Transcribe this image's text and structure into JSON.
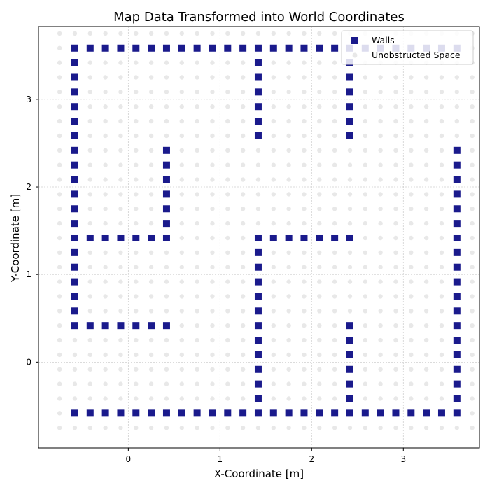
{
  "chart_data": {
    "type": "scatter",
    "title": "Map Data Transformed into World Coordinates",
    "xlabel": "X-Coordinate [m]",
    "ylabel": "Y-Coordinate [m]",
    "xlim": [
      -0.98,
      3.83
    ],
    "ylim": [
      -0.98,
      3.83
    ],
    "xticks": [
      0,
      1,
      2,
      3
    ],
    "yticks": [
      0,
      1,
      2,
      3
    ],
    "grid": true,
    "legend_placement": "top-right",
    "grid_spacing": 0.1667,
    "origin": [
      -0.75,
      -0.75
    ],
    "grid_columns": 28,
    "grid_rows": 28,
    "series": [
      {
        "name": "Walls",
        "marker": "square",
        "color": "#1a1a8c",
        "cells": [
          [
            1,
            1
          ],
          [
            2,
            1
          ],
          [
            3,
            1
          ],
          [
            4,
            1
          ],
          [
            5,
            1
          ],
          [
            6,
            1
          ],
          [
            7,
            1
          ],
          [
            8,
            1
          ],
          [
            9,
            1
          ],
          [
            10,
            1
          ],
          [
            11,
            1
          ],
          [
            12,
            1
          ],
          [
            13,
            1
          ],
          [
            14,
            1
          ],
          [
            15,
            1
          ],
          [
            16,
            1
          ],
          [
            17,
            1
          ],
          [
            18,
            1
          ],
          [
            19,
            1
          ],
          [
            20,
            1
          ],
          [
            21,
            1
          ],
          [
            22,
            1
          ],
          [
            23,
            1
          ],
          [
            24,
            1
          ],
          [
            25,
            1
          ],
          [
            26,
            1
          ],
          [
            1,
            26
          ],
          [
            2,
            26
          ],
          [
            3,
            26
          ],
          [
            4,
            26
          ],
          [
            5,
            26
          ],
          [
            6,
            26
          ],
          [
            7,
            26
          ],
          [
            8,
            26
          ],
          [
            9,
            26
          ],
          [
            10,
            26
          ],
          [
            11,
            26
          ],
          [
            12,
            26
          ],
          [
            13,
            26
          ],
          [
            14,
            26
          ],
          [
            15,
            26
          ],
          [
            16,
            26
          ],
          [
            17,
            26
          ],
          [
            18,
            26
          ],
          [
            19,
            26
          ],
          [
            20,
            26
          ],
          [
            21,
            26
          ],
          [
            22,
            26
          ],
          [
            23,
            26
          ],
          [
            24,
            26
          ],
          [
            25,
            26
          ],
          [
            26,
            26
          ],
          [
            1,
            7
          ],
          [
            1,
            8
          ],
          [
            1,
            9
          ],
          [
            1,
            10
          ],
          [
            1,
            11
          ],
          [
            1,
            12
          ],
          [
            1,
            13
          ],
          [
            1,
            14
          ],
          [
            1,
            15
          ],
          [
            1,
            16
          ],
          [
            1,
            17
          ],
          [
            1,
            18
          ],
          [
            1,
            19
          ],
          [
            1,
            20
          ],
          [
            1,
            21
          ],
          [
            1,
            22
          ],
          [
            1,
            23
          ],
          [
            1,
            24
          ],
          [
            1,
            25
          ],
          [
            2,
            7
          ],
          [
            3,
            7
          ],
          [
            4,
            7
          ],
          [
            5,
            7
          ],
          [
            6,
            7
          ],
          [
            7,
            7
          ],
          [
            2,
            13
          ],
          [
            3,
            13
          ],
          [
            4,
            13
          ],
          [
            5,
            13
          ],
          [
            6,
            13
          ],
          [
            7,
            13
          ],
          [
            7,
            14
          ],
          [
            7,
            15
          ],
          [
            7,
            16
          ],
          [
            7,
            17
          ],
          [
            7,
            18
          ],
          [
            7,
            19
          ],
          [
            13,
            2
          ],
          [
            13,
            3
          ],
          [
            13,
            4
          ],
          [
            13,
            5
          ],
          [
            13,
            6
          ],
          [
            13,
            7
          ],
          [
            13,
            8
          ],
          [
            13,
            9
          ],
          [
            13,
            10
          ],
          [
            13,
            11
          ],
          [
            13,
            12
          ],
          [
            13,
            13
          ],
          [
            14,
            13
          ],
          [
            15,
            13
          ],
          [
            16,
            13
          ],
          [
            17,
            13
          ],
          [
            18,
            13
          ],
          [
            19,
            13
          ],
          [
            13,
            20
          ],
          [
            13,
            21
          ],
          [
            13,
            22
          ],
          [
            13,
            23
          ],
          [
            13,
            24
          ],
          [
            13,
            25
          ],
          [
            19,
            2
          ],
          [
            19,
            3
          ],
          [
            19,
            4
          ],
          [
            19,
            5
          ],
          [
            19,
            6
          ],
          [
            19,
            7
          ],
          [
            19,
            20
          ],
          [
            19,
            21
          ],
          [
            19,
            22
          ],
          [
            19,
            23
          ],
          [
            19,
            24
          ],
          [
            19,
            25
          ],
          [
            26,
            2
          ],
          [
            26,
            3
          ],
          [
            26,
            4
          ],
          [
            26,
            5
          ],
          [
            26,
            6
          ],
          [
            26,
            7
          ],
          [
            26,
            8
          ],
          [
            26,
            9
          ],
          [
            26,
            10
          ],
          [
            26,
            11
          ],
          [
            26,
            12
          ],
          [
            26,
            13
          ],
          [
            26,
            14
          ],
          [
            26,
            15
          ],
          [
            26,
            16
          ],
          [
            26,
            17
          ],
          [
            26,
            18
          ],
          [
            26,
            19
          ]
        ]
      },
      {
        "name": "Unobstructed Space",
        "marker": "circle",
        "color": "#e8e8e8",
        "fill": "all remaining grid cells"
      }
    ]
  }
}
